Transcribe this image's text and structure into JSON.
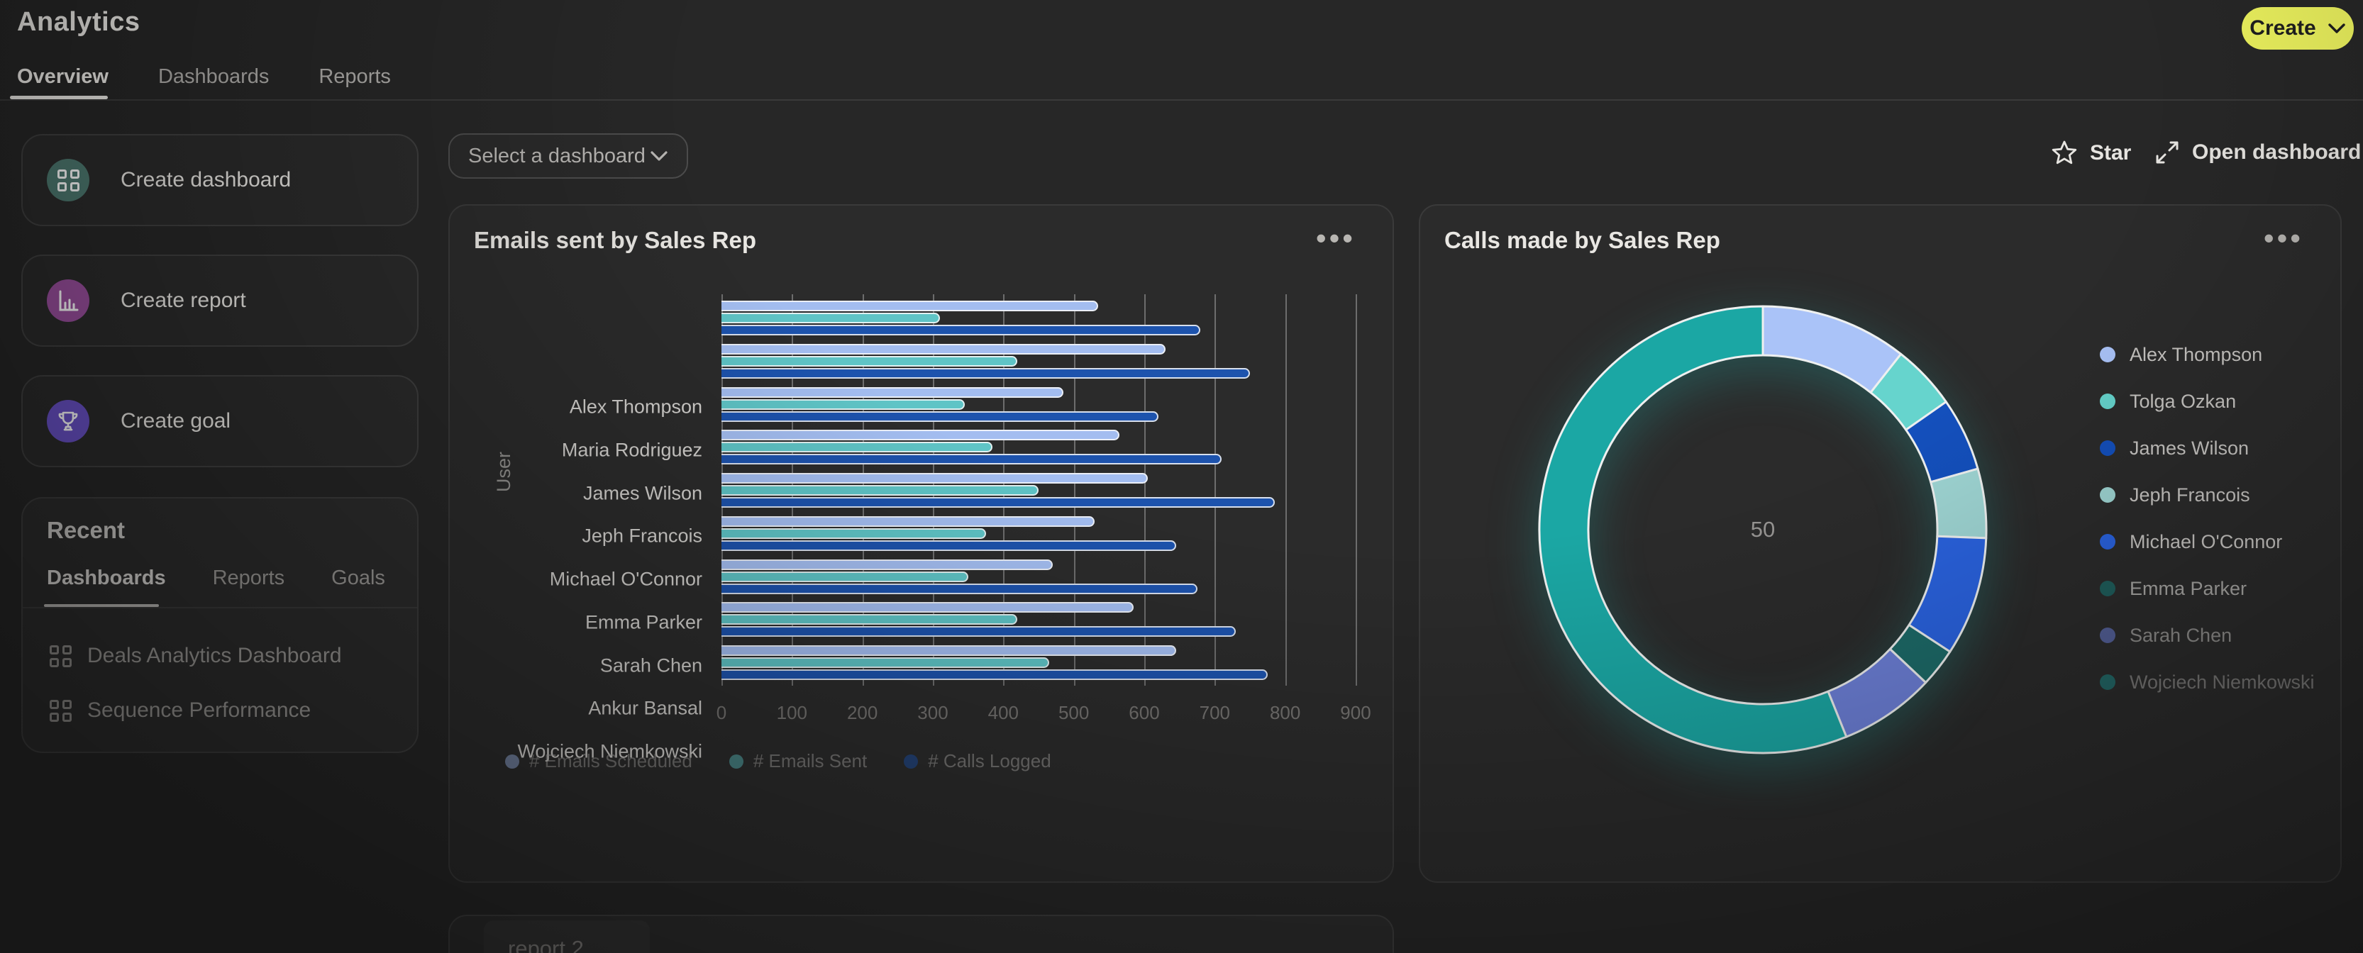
{
  "header": {
    "title": "Analytics",
    "tabs": [
      {
        "label": "Overview",
        "active": true
      },
      {
        "label": "Dashboards",
        "active": false
      },
      {
        "label": "Reports",
        "active": false
      }
    ],
    "create_button": {
      "label": "Create",
      "color": "#edf35e"
    }
  },
  "toolbar": {
    "dashboard_select_placeholder": "Select a dashboard",
    "star_label": "Star",
    "open_dashboard_label": "Open dashboard"
  },
  "quick_actions": [
    {
      "label": "Create dashboard",
      "icon": "dashboard-grid-icon",
      "circle_color": "#4e7a71"
    },
    {
      "label": "Create report",
      "icon": "bar-chart-icon",
      "circle_color": "#9a4f9e"
    },
    {
      "label": "Create goal",
      "icon": "trophy-icon",
      "circle_color": "#6a52c8"
    }
  ],
  "recent": {
    "title": "Recent",
    "tabs": [
      {
        "label": "Dashboards",
        "active": true
      },
      {
        "label": "Reports",
        "active": false
      },
      {
        "label": "Goals",
        "active": false
      }
    ],
    "items": [
      "Deals Analytics Dashboard",
      "Sequence Performance"
    ]
  },
  "emails_card": {
    "title": "Emails sent by Sales Rep",
    "menu_icon": "ellipsis-menu-icon"
  },
  "calls_card": {
    "title": "Calls made by Sales Rep",
    "menu_icon": "ellipsis-menu-icon"
  },
  "partial_card": {
    "title": "report 2"
  },
  "chart_data": [
    {
      "type": "bar",
      "orientation": "horizontal",
      "title": "Emails sent by Sales Rep",
      "ylabel": "User",
      "xlabel": "",
      "xlim": [
        0,
        900
      ],
      "x_ticks": [
        0,
        100,
        200,
        300,
        400,
        500,
        600,
        700,
        800,
        900
      ],
      "grid": true,
      "legend_position": "bottom",
      "categories": [
        "Alex Thompson",
        "Maria Rodriguez",
        "James Wilson",
        "Jeph Francois",
        "Michael O'Connor",
        "Emma Parker",
        "Sarah Chen",
        "Ankur Bansal",
        "Wojciech Niemkowski"
      ],
      "series": [
        {
          "name": "# Emails Scheduled",
          "color": "#a3bdf0",
          "values": [
            535,
            630,
            485,
            565,
            605,
            530,
            470,
            585,
            645
          ]
        },
        {
          "name": "# Emails Sent",
          "color": "#5fc4c6",
          "values": [
            310,
            420,
            345,
            385,
            450,
            375,
            350,
            420,
            465
          ]
        },
        {
          "name": "# Calls Logged",
          "color": "#1d53ad",
          "values": [
            680,
            750,
            620,
            710,
            785,
            645,
            675,
            730,
            775
          ]
        }
      ]
    },
    {
      "type": "pie",
      "subtype": "donut",
      "title": "Calls made by Sales Rep",
      "center_label": "50",
      "units": "percent (estimated from arc angles)",
      "legend_position": "right",
      "labels": [
        "Alex Thompson",
        "Tolga Ozkan",
        "James Wilson",
        "Jeph Francois",
        "Michael O'Connor",
        "Emma Parker",
        "Sarah Chen",
        "Wojciech Niemkowski"
      ],
      "values": [
        10.6,
        4.7,
        5.3,
        5.0,
        8.6,
        2.8,
        6.9,
        56.1
      ],
      "colors": [
        "#aac3f8",
        "#66d4cd",
        "#1450bd",
        "#9fd6d4",
        "#2a63e0",
        "#1d6b69",
        "#6d80d8",
        "#1ba7a4"
      ],
      "legend_fade": [
        1,
        1,
        1,
        1,
        1,
        0.8,
        0.62,
        0.48
      ]
    }
  ]
}
